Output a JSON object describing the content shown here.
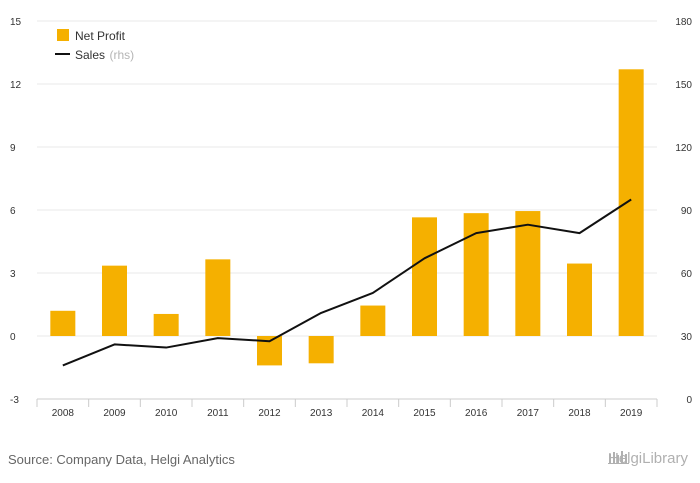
{
  "chart_data": {
    "type": "bar+line",
    "categories": [
      "2008",
      "2009",
      "2010",
      "2011",
      "2012",
      "2013",
      "2014",
      "2015",
      "2016",
      "2017",
      "2018",
      "2019"
    ],
    "series": [
      {
        "name": "Net Profit",
        "type": "bar",
        "axis": "left",
        "color": "#F5B000",
        "values": [
          1.2,
          3.35,
          1.05,
          3.65,
          -1.4,
          -1.3,
          1.45,
          5.65,
          5.85,
          5.95,
          3.45,
          12.7
        ]
      },
      {
        "name": "Sales",
        "name_suffix": "(rhs)",
        "type": "line",
        "axis": "right",
        "color": "#111111",
        "values": [
          16,
          26,
          24.5,
          29,
          27.5,
          41,
          50.5,
          67,
          79,
          83,
          79,
          95
        ]
      }
    ],
    "y_left": {
      "ticks": [
        "-3",
        "0",
        "3",
        "6",
        "9",
        "12",
        "15"
      ],
      "ylim": [
        -3,
        15
      ]
    },
    "y_right": {
      "ticks": [
        "0",
        "30",
        "60",
        "90",
        "120",
        "150",
        "180"
      ],
      "ylim": [
        0,
        180
      ]
    },
    "grid": true,
    "legend_position": "top-left"
  },
  "footer": {
    "source": "Source: Company Data, Helgi Analytics",
    "logo": "HelgiLibrary"
  }
}
